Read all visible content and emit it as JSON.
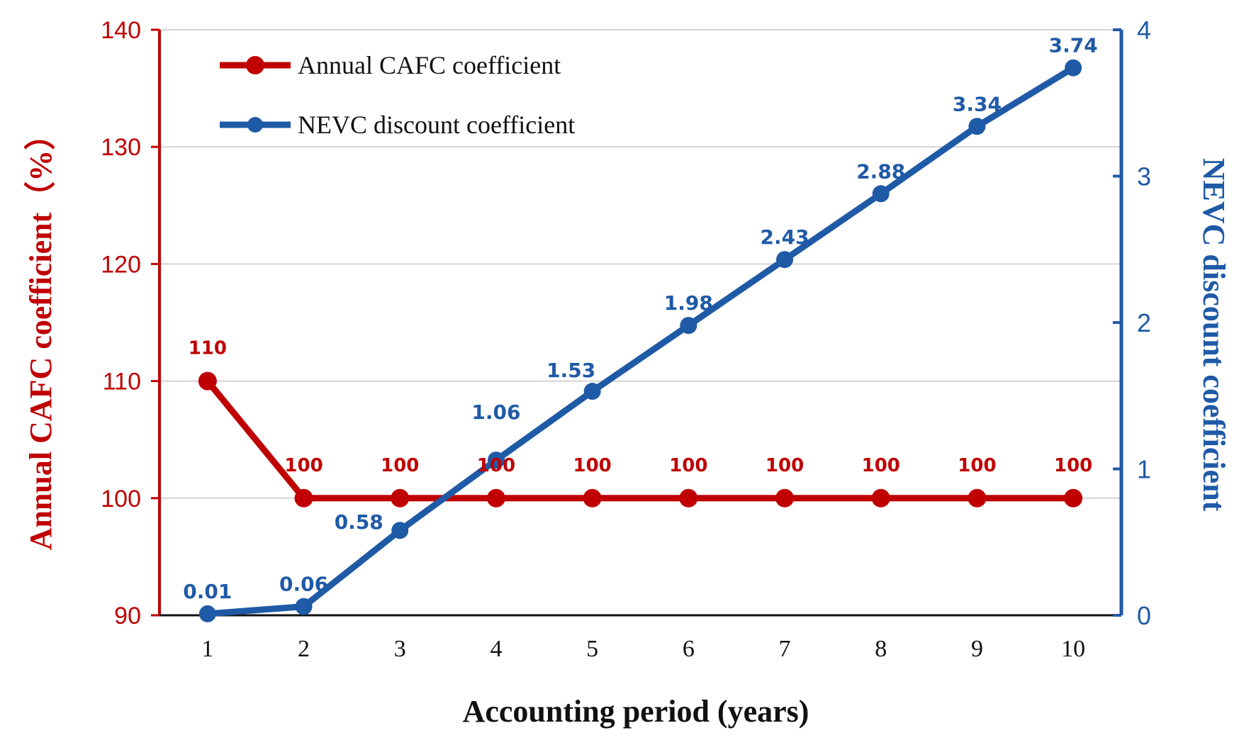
{
  "chart_data": {
    "type": "line",
    "xlabel": "Accounting period (years)",
    "y1label": "Annual CAFC coefficient（%）",
    "y2label": "NEVC discount coefficient",
    "x": [
      1,
      2,
      3,
      4,
      5,
      6,
      7,
      8,
      9,
      10
    ],
    "y1lim": [
      90,
      140
    ],
    "y1ticks": [
      90,
      100,
      110,
      120,
      130,
      140
    ],
    "y2lim": [
      0,
      4
    ],
    "y2ticks": [
      0,
      1,
      2,
      3,
      4
    ],
    "grid": true,
    "legend_position": "top-left",
    "series": [
      {
        "name": "Annual CAFC coefficient",
        "axis": "left",
        "color": "#c00000",
        "values": [
          110,
          100,
          100,
          100,
          100,
          100,
          100,
          100,
          100,
          100
        ],
        "labels": [
          "110",
          "100",
          "100",
          "100",
          "100",
          "100",
          "100",
          "100",
          "100",
          "100"
        ]
      },
      {
        "name": "NEVC discount coefficient",
        "axis": "right",
        "color": "#1f5aa6",
        "values": [
          0.01,
          0.06,
          0.58,
          1.06,
          1.53,
          1.98,
          2.43,
          2.88,
          3.34,
          3.74
        ],
        "labels": [
          "0.01",
          "0.06",
          "0.58",
          "1.06",
          "1.53",
          "1.98",
          "2.43",
          "2.88",
          "3.34",
          "3.74"
        ]
      }
    ]
  }
}
